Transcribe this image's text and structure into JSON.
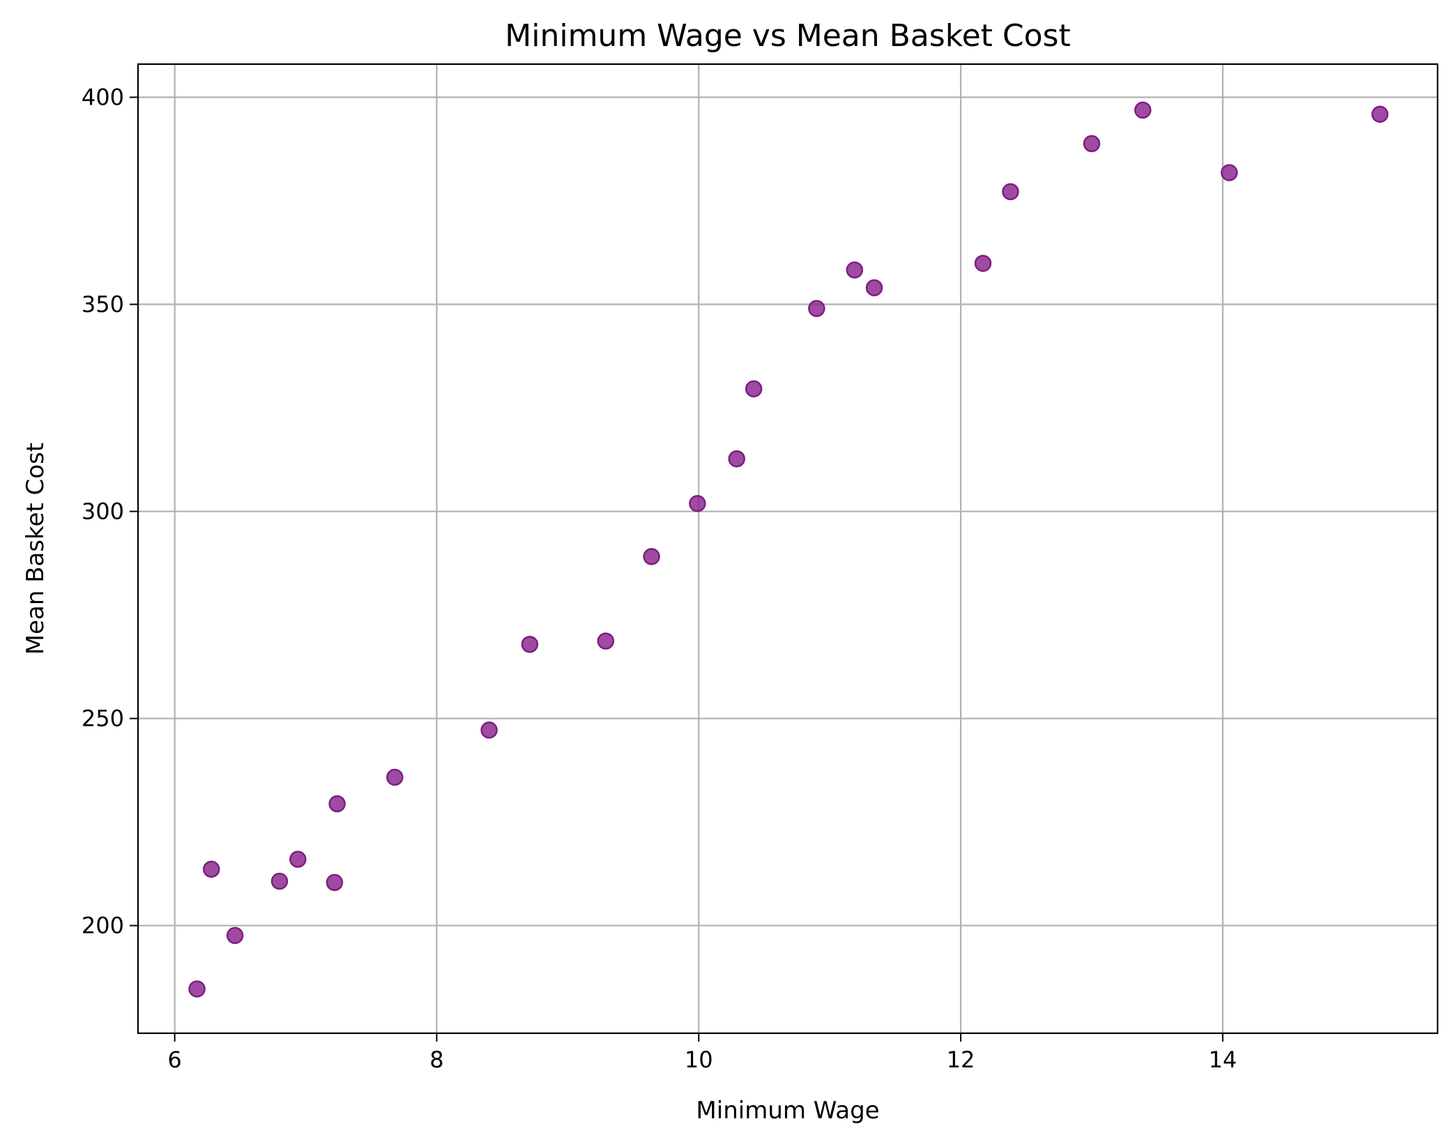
{
  "chart_data": {
    "type": "scatter",
    "title": "Minimum Wage vs Mean Basket Cost",
    "xlabel": "Minimum Wage",
    "ylabel": "Mean Basket Cost",
    "xlim": [
      5.72,
      15.64
    ],
    "ylim": [
      174,
      408
    ],
    "xticks": [
      6,
      8,
      10,
      12,
      14
    ],
    "yticks": [
      200,
      250,
      300,
      350,
      400
    ],
    "grid": true,
    "legend": "none",
    "marker_color": "#8e2b92",
    "marker_edge_color": "#7b1f80",
    "grid_color": "#b0b0b0",
    "series": [
      {
        "x": [
          6.17,
          6.28,
          6.46,
          6.8,
          6.94,
          7.22,
          7.24,
          7.68,
          8.4,
          8.71,
          9.29,
          9.64,
          9.99,
          10.29,
          10.42,
          10.9,
          11.19,
          11.34,
          12.17,
          12.38,
          13.0,
          13.39,
          14.05,
          15.2
        ],
        "y": [
          184.7,
          213.6,
          197.6,
          210.7,
          216.0,
          210.4,
          229.4,
          235.8,
          247.2,
          267.9,
          268.7,
          289.1,
          301.9,
          312.7,
          329.6,
          349.0,
          358.3,
          354.0,
          359.9,
          377.2,
          388.8,
          396.9,
          381.8,
          395.9
        ]
      }
    ]
  }
}
